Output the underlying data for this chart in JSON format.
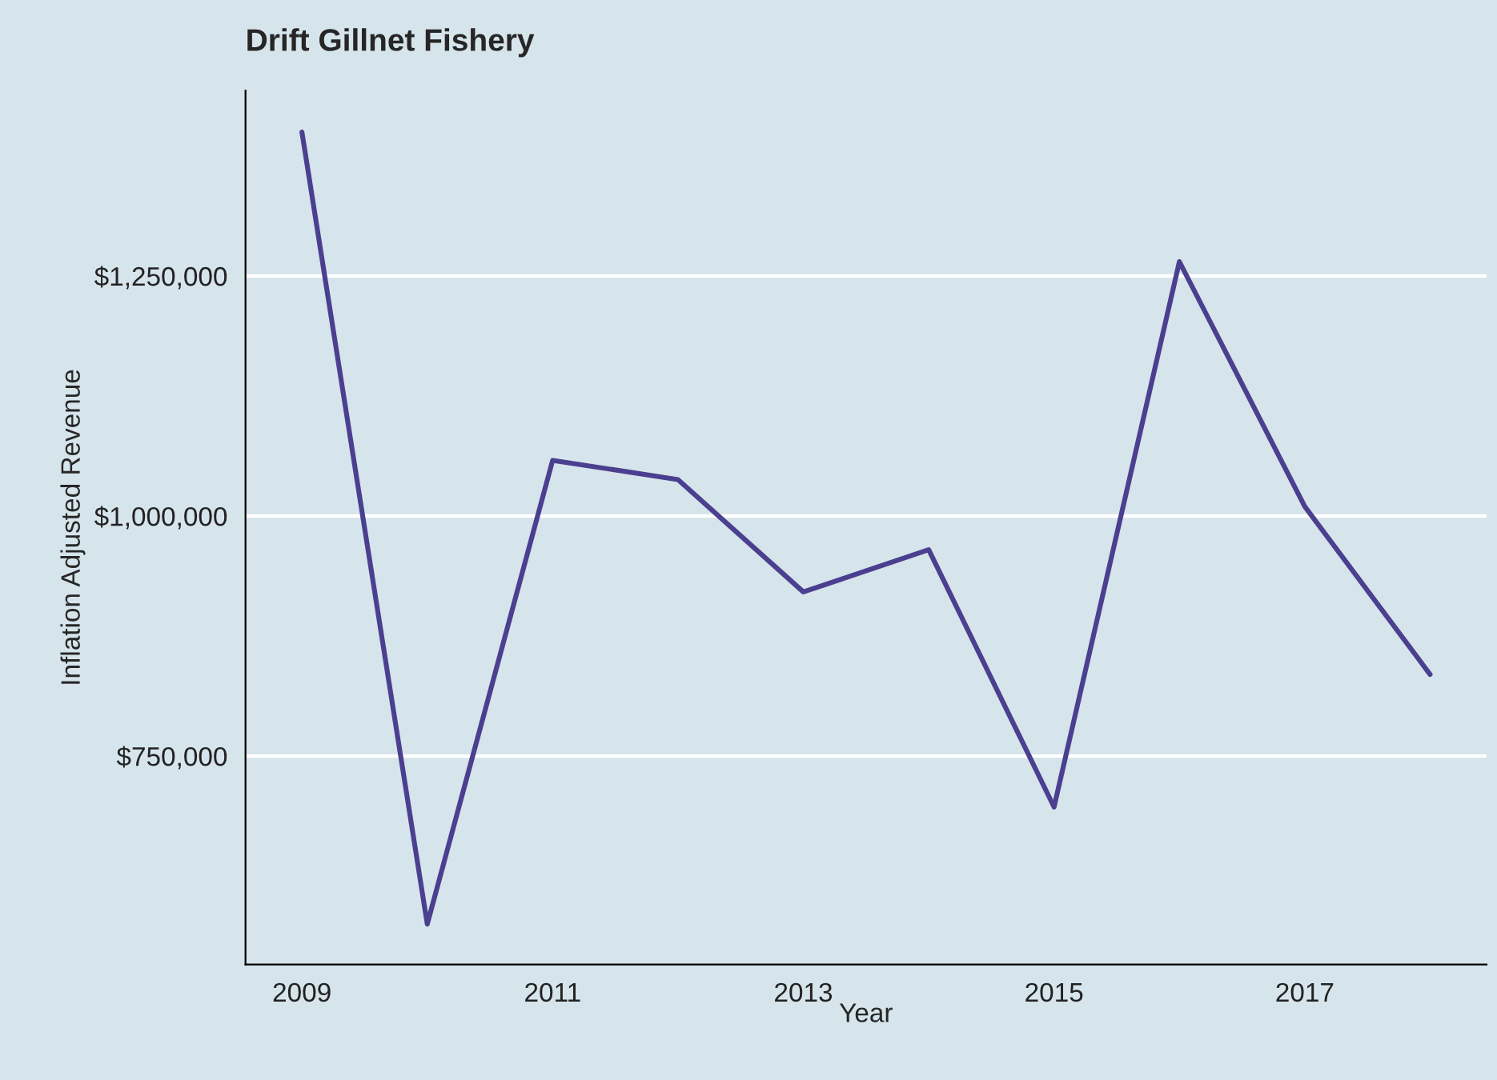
{
  "chart_data": {
    "type": "line",
    "title": "Drift Gillnet Fishery",
    "xlabel": "Year",
    "ylabel": "Inflation Adjusted Revenue",
    "x": [
      2009,
      2010,
      2011,
      2012,
      2013,
      2014,
      2015,
      2016,
      2017,
      2018
    ],
    "series": [
      {
        "color": "#4b3f8f",
        "values": [
          1400000,
          575000,
          1058000,
          1038000,
          921000,
          965000,
          697000,
          1265000,
          1010000,
          835000
        ]
      }
    ],
    "xlim": [
      2008.55,
      2018.45
    ],
    "xticks": [
      2009,
      2011,
      2013,
      2015,
      2017
    ],
    "ylim": [
      533000,
      1443000
    ],
    "yticks": [
      {
        "value": 750000,
        "label": "$750,000"
      },
      {
        "value": 1000000,
        "label": "$1,000,000"
      },
      {
        "value": 1250000,
        "label": "$1,250,000"
      }
    ],
    "grid": "y",
    "legend": false,
    "marker": "none",
    "line_style": "solid"
  }
}
